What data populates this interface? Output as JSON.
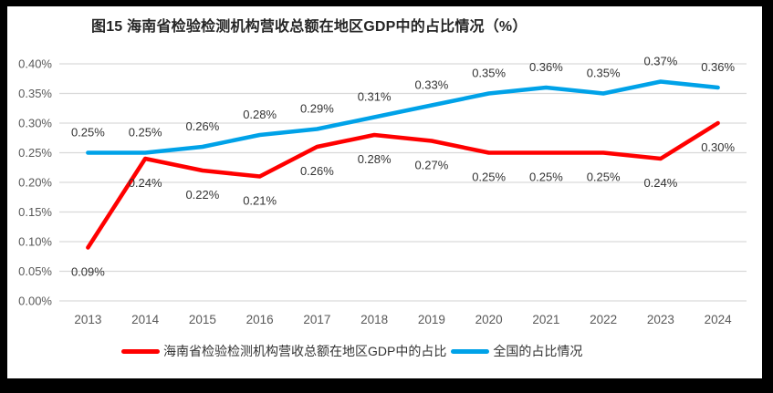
{
  "title": "图15 海南省检验检测机构营收总额在地区GDP中的占比情况（%）",
  "colors": {
    "background": "#FFFFFF",
    "frame": "#000000",
    "grid": "#D9D9D9",
    "axis_text": "#595959",
    "data_label": "#333333",
    "legend_text": "#333333",
    "title_text": "#262626",
    "series_hainan": "#FF0000",
    "series_national": "#00A2E8"
  },
  "chart_data": {
    "type": "line",
    "title": "图15 海南省检验检测机构营收总额在地区GDP中的占比情况（%）",
    "categories": [
      "2013",
      "2014",
      "2015",
      "2016",
      "2017",
      "2018",
      "2019",
      "2020",
      "2021",
      "2022",
      "2023",
      "2024"
    ],
    "series": [
      {
        "name": "海南省检验检测机构营收总额在地区GDP中的占比",
        "color": "#FF0000",
        "values": [
          0.09,
          0.24,
          0.22,
          0.21,
          0.26,
          0.28,
          0.27,
          0.25,
          0.25,
          0.25,
          0.24,
          0.3
        ],
        "labels": [
          "0.09%",
          "0.24%",
          "0.22%",
          "0.21%",
          "0.26%",
          "0.28%",
          "0.27%",
          "0.25%",
          "0.25%",
          "0.25%",
          "0.24%",
          "0.30%"
        ],
        "label_position": "below"
      },
      {
        "name": "全国的占比情况",
        "color": "#00A2E8",
        "values": [
          0.25,
          0.25,
          0.26,
          0.28,
          0.29,
          0.31,
          0.33,
          0.35,
          0.36,
          0.35,
          0.37,
          0.36
        ],
        "labels": [
          "0.25%",
          "0.25%",
          "0.26%",
          "0.28%",
          "0.29%",
          "0.31%",
          "0.33%",
          "0.35%",
          "0.36%",
          "0.35%",
          "0.37%",
          "0.36%"
        ],
        "label_position": "above"
      }
    ],
    "xlabel": "",
    "ylabel": "",
    "unit": "%",
    "ylim": [
      0,
      0.4
    ],
    "ytick_step": 0.05,
    "ytick_labels": [
      "0.00%",
      "0.05%",
      "0.10%",
      "0.15%",
      "0.20%",
      "0.25%",
      "0.30%",
      "0.35%",
      "0.40%"
    ],
    "grid": true,
    "legend_position": "bottom"
  }
}
